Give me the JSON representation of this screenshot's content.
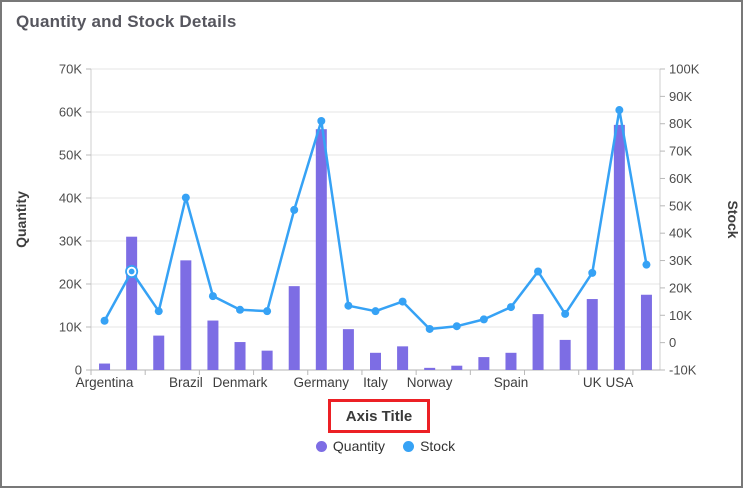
{
  "window": {
    "title": "Quantity and Stock Details"
  },
  "chart_data": {
    "type": "combo-bar-line",
    "title": "Quantity and Stock Details",
    "x_axis": {
      "title": "Axis Title",
      "title_highlighted_with_red_box": true,
      "categories": [
        "Argentina",
        "",
        "",
        "Brazil",
        "",
        "Denmark",
        "",
        "",
        "Germany",
        "",
        "Italy",
        "",
        "Norway",
        "",
        "",
        "Spain",
        "",
        "",
        "UK",
        "USA",
        ""
      ]
    },
    "y_axis_left": {
      "title": "Quantity",
      "min": 0,
      "max": 70000,
      "tick_labels": [
        "0",
        "10K",
        "20K",
        "30K",
        "40K",
        "50K",
        "60K",
        "70K"
      ]
    },
    "y_axis_right": {
      "title": "Stock",
      "min": -10000,
      "max": 100000,
      "tick_labels": [
        "-10K",
        "0",
        "10K",
        "20K",
        "30K",
        "40K",
        "50K",
        "60K",
        "70K",
        "80K",
        "90K",
        "100K"
      ]
    },
    "series": [
      {
        "name": "Quantity",
        "type": "bar",
        "axis": "left",
        "color": "#7d6de4",
        "values": [
          1500,
          31000,
          8000,
          25500,
          11500,
          6500,
          4500,
          19500,
          56000,
          9500,
          4000,
          5500,
          500,
          1000,
          3000,
          4000,
          13000,
          7000,
          16500,
          57000,
          17500
        ]
      },
      {
        "name": "Stock",
        "type": "line",
        "axis": "right",
        "color": "#36a2f5",
        "highlight_index": 1,
        "values": [
          8000,
          26000,
          11500,
          53000,
          17000,
          12000,
          11500,
          48500,
          81000,
          13500,
          11500,
          15000,
          5000,
          6000,
          8500,
          13000,
          26000,
          10500,
          25500,
          85000,
          28500
        ]
      }
    ],
    "legend": {
      "position": "bottom",
      "items": [
        {
          "label": "Quantity",
          "color": "#7d6de4"
        },
        {
          "label": "Stock",
          "color": "#36a2f5"
        }
      ]
    },
    "grid": "horizontal",
    "colors": {
      "gridline": "#e4e4e4",
      "axis_line": "#b3b3b3",
      "tick_text": "#4d4d4d",
      "category_text": "#3e3e3e",
      "highlight_box": "#ec2025"
    }
  }
}
